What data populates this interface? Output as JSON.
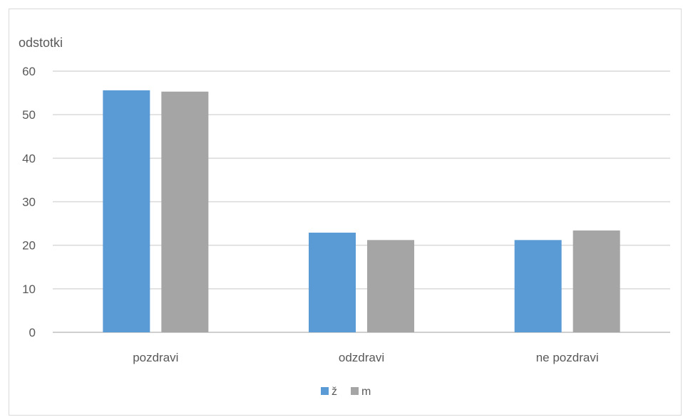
{
  "chart_data": {
    "type": "bar",
    "title": "",
    "ylabel": "odstotki",
    "xlabel": "",
    "categories": [
      "pozdravi",
      "odzdravi",
      "ne pozdravi"
    ],
    "series": [
      {
        "name": "ž",
        "values": [
          55.6,
          22.9,
          21.2
        ],
        "color": "#5B9BD5"
      },
      {
        "name": "m",
        "values": [
          55.3,
          21.2,
          23.4
        ],
        "color": "#A5A5A5"
      }
    ],
    "ylim": [
      0,
      60
    ],
    "yticks": [
      0,
      10,
      20,
      30,
      40,
      50,
      60
    ],
    "grid": true,
    "legend_position": "bottom"
  }
}
